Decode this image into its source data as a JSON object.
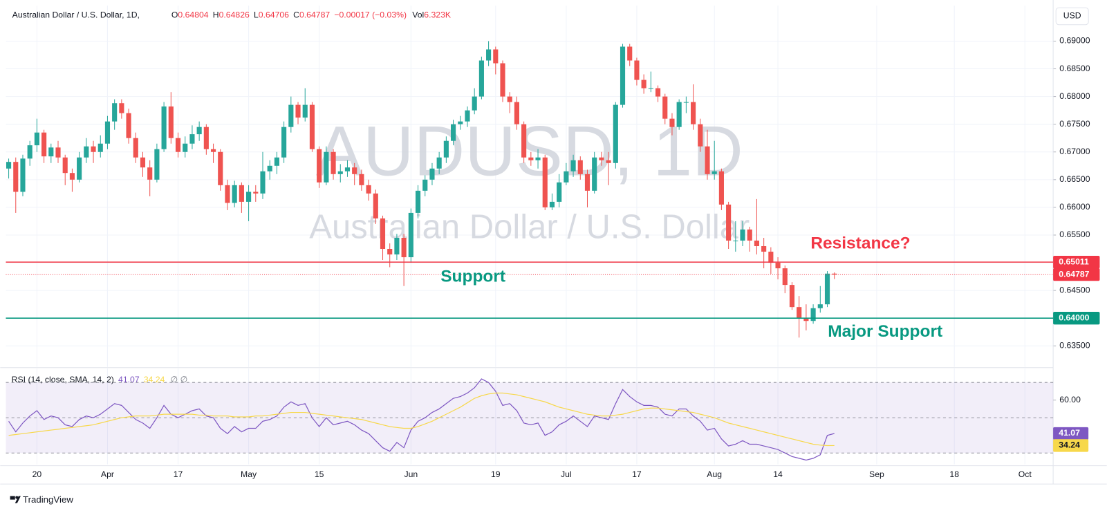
{
  "header": {
    "symbol": "Australian Dollar / U.S. Dollar, 1D,",
    "legend": [
      {
        "label": "O",
        "value": "0.64804"
      },
      {
        "label": "H",
        "value": "0.64826"
      },
      {
        "label": "L",
        "value": "0.64706"
      },
      {
        "label": "C",
        "value": "0.64787"
      }
    ],
    "change": "−0.00017 (−0.03%)",
    "vol_label": "Vol",
    "vol": "6.323K"
  },
  "currency": "USD",
  "brand": "TradingView",
  "chart_data": [
    {
      "type": "candlestick",
      "watermark": "AUDUSD, 1D",
      "watermark_subtitle": "Australian Dollar / U.S. Dollar",
      "up_color": "#26a69a",
      "down_color": "#ef5350",
      "last_price_color": "#f23645",
      "ohlc": [
        [
          0.667,
          0.6688,
          0.6652,
          0.6682
        ],
        [
          0.6682,
          0.669,
          0.659,
          0.6628
        ],
        [
          0.6628,
          0.6695,
          0.662,
          0.6688
        ],
        [
          0.6688,
          0.672,
          0.6675,
          0.6712
        ],
        [
          0.6712,
          0.676,
          0.67,
          0.6735
        ],
        [
          0.6735,
          0.674,
          0.668,
          0.6692
        ],
        [
          0.6692,
          0.6715,
          0.668,
          0.6708
        ],
        [
          0.6708,
          0.672,
          0.668,
          0.669
        ],
        [
          0.669,
          0.6695,
          0.664,
          0.6662
        ],
        [
          0.6662,
          0.667,
          0.6628,
          0.665
        ],
        [
          0.665,
          0.67,
          0.6645,
          0.669
        ],
        [
          0.669,
          0.6725,
          0.668,
          0.671
        ],
        [
          0.671,
          0.672,
          0.668,
          0.67
        ],
        [
          0.67,
          0.673,
          0.669,
          0.6715
        ],
        [
          0.6715,
          0.6765,
          0.6705,
          0.6755
        ],
        [
          0.6755,
          0.6795,
          0.674,
          0.6788
        ],
        [
          0.6788,
          0.6795,
          0.676,
          0.677
        ],
        [
          0.677,
          0.6778,
          0.6715,
          0.6725
        ],
        [
          0.6725,
          0.6735,
          0.668,
          0.669
        ],
        [
          0.669,
          0.67,
          0.6655,
          0.6672
        ],
        [
          0.6672,
          0.6685,
          0.662,
          0.665
        ],
        [
          0.665,
          0.6715,
          0.6645,
          0.6705
        ],
        [
          0.6705,
          0.679,
          0.67,
          0.6782
        ],
        [
          0.6782,
          0.6808,
          0.6715,
          0.6725
        ],
        [
          0.6725,
          0.6735,
          0.669,
          0.67
        ],
        [
          0.67,
          0.6728,
          0.669,
          0.6715
        ],
        [
          0.6715,
          0.6748,
          0.6705,
          0.6732
        ],
        [
          0.6732,
          0.6755,
          0.672,
          0.6745
        ],
        [
          0.6745,
          0.675,
          0.6695,
          0.6705
        ],
        [
          0.6705,
          0.6715,
          0.668,
          0.67
        ],
        [
          0.67,
          0.6705,
          0.663,
          0.664
        ],
        [
          0.664,
          0.665,
          0.6595,
          0.6608
        ],
        [
          0.6608,
          0.6648,
          0.66,
          0.664
        ],
        [
          0.664,
          0.6645,
          0.659,
          0.661
        ],
        [
          0.661,
          0.664,
          0.6575,
          0.6628
        ],
        [
          0.6628,
          0.664,
          0.661,
          0.6625
        ],
        [
          0.6625,
          0.67,
          0.6615,
          0.6665
        ],
        [
          0.6665,
          0.6685,
          0.665,
          0.6675
        ],
        [
          0.6675,
          0.67,
          0.666,
          0.669
        ],
        [
          0.669,
          0.6755,
          0.668,
          0.6745
        ],
        [
          0.6745,
          0.68,
          0.6735,
          0.6785
        ],
        [
          0.6785,
          0.679,
          0.675,
          0.6762
        ],
        [
          0.6762,
          0.6815,
          0.6755,
          0.6785
        ],
        [
          0.6785,
          0.679,
          0.67,
          0.6705
        ],
        [
          0.6705,
          0.671,
          0.6635,
          0.6645
        ],
        [
          0.6645,
          0.671,
          0.664,
          0.67
        ],
        [
          0.67,
          0.6705,
          0.665,
          0.666
        ],
        [
          0.666,
          0.6678,
          0.6645,
          0.6665
        ],
        [
          0.6665,
          0.6685,
          0.6655,
          0.6672
        ],
        [
          0.6672,
          0.668,
          0.664,
          0.666
        ],
        [
          0.666,
          0.6668,
          0.663,
          0.664
        ],
        [
          0.664,
          0.665,
          0.6612,
          0.6625
        ],
        [
          0.6625,
          0.6632,
          0.657,
          0.658
        ],
        [
          0.658,
          0.6585,
          0.6505,
          0.6525
        ],
        [
          0.6525,
          0.6535,
          0.6492,
          0.6515
        ],
        [
          0.6515,
          0.6552,
          0.6505,
          0.6545
        ],
        [
          0.6545,
          0.6552,
          0.6458,
          0.651
        ],
        [
          0.651,
          0.6598,
          0.65,
          0.659
        ],
        [
          0.659,
          0.664,
          0.658,
          0.663
        ],
        [
          0.663,
          0.6658,
          0.662,
          0.665
        ],
        [
          0.665,
          0.668,
          0.664,
          0.667
        ],
        [
          0.667,
          0.67,
          0.666,
          0.669
        ],
        [
          0.669,
          0.6728,
          0.668,
          0.672
        ],
        [
          0.672,
          0.6758,
          0.6712,
          0.675
        ],
        [
          0.675,
          0.6765,
          0.674,
          0.6755
        ],
        [
          0.6755,
          0.6782,
          0.6745,
          0.6775
        ],
        [
          0.6775,
          0.6815,
          0.6768,
          0.68
        ],
        [
          0.68,
          0.6872,
          0.6795,
          0.6865
        ],
        [
          0.6865,
          0.69,
          0.6855,
          0.6885
        ],
        [
          0.6885,
          0.689,
          0.684,
          0.686
        ],
        [
          0.686,
          0.6865,
          0.679,
          0.68
        ],
        [
          0.68,
          0.6808,
          0.677,
          0.679
        ],
        [
          0.679,
          0.68,
          0.674,
          0.675
        ],
        [
          0.675,
          0.6755,
          0.668,
          0.669
        ],
        [
          0.669,
          0.67,
          0.6675,
          0.6685
        ],
        [
          0.6685,
          0.6705,
          0.667,
          0.669
        ],
        [
          0.669,
          0.6695,
          0.6595,
          0.66
        ],
        [
          0.66,
          0.6625,
          0.6595,
          0.661
        ],
        [
          0.661,
          0.666,
          0.66,
          0.6645
        ],
        [
          0.6645,
          0.668,
          0.664,
          0.6665
        ],
        [
          0.6665,
          0.6695,
          0.6655,
          0.6685
        ],
        [
          0.6685,
          0.6692,
          0.665,
          0.666
        ],
        [
          0.666,
          0.6668,
          0.66,
          0.663
        ],
        [
          0.663,
          0.67,
          0.6625,
          0.669
        ],
        [
          0.669,
          0.67,
          0.6675,
          0.6685
        ],
        [
          0.6685,
          0.67,
          0.664,
          0.668
        ],
        [
          0.668,
          0.679,
          0.667,
          0.6785
        ],
        [
          0.6785,
          0.6895,
          0.678,
          0.689
        ],
        [
          0.689,
          0.6895,
          0.6855,
          0.6865
        ],
        [
          0.6865,
          0.687,
          0.682,
          0.683
        ],
        [
          0.683,
          0.684,
          0.6805,
          0.6815
        ],
        [
          0.6815,
          0.6845,
          0.6808,
          0.6815
        ],
        [
          0.6815,
          0.682,
          0.679,
          0.68
        ],
        [
          0.68,
          0.6805,
          0.675,
          0.676
        ],
        [
          0.676,
          0.677,
          0.673,
          0.6745
        ],
        [
          0.6745,
          0.6795,
          0.674,
          0.679
        ],
        [
          0.679,
          0.68,
          0.677,
          0.679
        ],
        [
          0.679,
          0.6822,
          0.674,
          0.675
        ],
        [
          0.675,
          0.676,
          0.67,
          0.671
        ],
        [
          0.671,
          0.674,
          0.665,
          0.666
        ],
        [
          0.666,
          0.672,
          0.665,
          0.6665
        ],
        [
          0.6665,
          0.667,
          0.6595,
          0.6605
        ],
        [
          0.6605,
          0.661,
          0.6525,
          0.654
        ],
        [
          0.654,
          0.6575,
          0.652,
          0.654
        ],
        [
          0.654,
          0.6575,
          0.653,
          0.656
        ],
        [
          0.656,
          0.6565,
          0.652,
          0.654
        ],
        [
          0.654,
          0.6615,
          0.6515,
          0.653
        ],
        [
          0.653,
          0.6545,
          0.649,
          0.652
        ],
        [
          0.652,
          0.6528,
          0.648,
          0.65
        ],
        [
          0.65,
          0.651,
          0.647,
          0.649
        ],
        [
          0.649,
          0.6495,
          0.6445,
          0.646
        ],
        [
          0.646,
          0.6465,
          0.6415,
          0.642
        ],
        [
          0.642,
          0.644,
          0.6365,
          0.64
        ],
        [
          0.64,
          0.6425,
          0.6378,
          0.6395
        ],
        [
          0.6395,
          0.6425,
          0.639,
          0.6418
        ],
        [
          0.6418,
          0.6458,
          0.641,
          0.6425
        ],
        [
          0.6425,
          0.6485,
          0.642,
          0.64804
        ],
        [
          0.64804,
          0.64826,
          0.64706,
          0.64787
        ]
      ],
      "xlim": [
        -0.4,
        148
      ],
      "xticks": [
        {
          "value": 4,
          "label": "20"
        },
        {
          "value": 14,
          "label": "Apr"
        },
        {
          "value": 24,
          "label": "17"
        },
        {
          "value": 34,
          "label": "May"
        },
        {
          "value": 44,
          "label": "15"
        },
        {
          "value": 57,
          "label": "Jun"
        },
        {
          "value": 69,
          "label": "19"
        },
        {
          "value": 79,
          "label": "Jul"
        },
        {
          "value": 89,
          "label": "17"
        },
        {
          "value": 100,
          "label": "Aug"
        },
        {
          "value": 109,
          "label": "14"
        },
        {
          "value": 123,
          "label": "Sep"
        },
        {
          "value": 134,
          "label": "18"
        },
        {
          "value": 144,
          "label": "Oct"
        }
      ],
      "ylim": [
        0.6312,
        0.6964
      ],
      "yticks": [
        {
          "value": 0.635,
          "label": "0.63500"
        },
        {
          "value": 0.64,
          "label": "0.64000"
        },
        {
          "value": 0.645,
          "label": "0.64500"
        },
        {
          "value": 0.65,
          "label": "0.65000"
        },
        {
          "value": 0.655,
          "label": "0.65500"
        },
        {
          "value": 0.66,
          "label": "0.66000"
        },
        {
          "value": 0.665,
          "label": "0.66500"
        },
        {
          "value": 0.67,
          "label": "0.67000"
        },
        {
          "value": 0.675,
          "label": "0.67500"
        },
        {
          "value": 0.68,
          "label": "0.68000"
        },
        {
          "value": 0.685,
          "label": "0.68500"
        },
        {
          "value": 0.69,
          "label": "0.69000"
        }
      ],
      "grid": true,
      "hlines": [
        {
          "value": 0.65011,
          "color": "#f23645"
        },
        {
          "value": 0.64,
          "label": "0.64000",
          "color": "#089981"
        }
      ],
      "annotations": [
        {
          "text": "Resistance?",
          "color": "#f23645"
        },
        {
          "text": "Support",
          "color": "#089981"
        },
        {
          "text": "Major Support",
          "color": "#089981"
        }
      ]
    },
    {
      "type": "line",
      "title": "RSI (14, close, SMA, 14, 2)",
      "legend_extra": "∅ ∅",
      "series": [
        {
          "color": "#7e57c2",
          "values": [
            48,
            42,
            47,
            51,
            54,
            49,
            51,
            50,
            46,
            45,
            49,
            51,
            50,
            52,
            55,
            58,
            57,
            53,
            49,
            47,
            44,
            50,
            57,
            52,
            50,
            52,
            54,
            55,
            51,
            50,
            44,
            41,
            45,
            42,
            44,
            44,
            48,
            49,
            51,
            56,
            59,
            57,
            58,
            50,
            45,
            50,
            46,
            47,
            48,
            46,
            43,
            41,
            37,
            33,
            31,
            36,
            33,
            43,
            48,
            50,
            53,
            55,
            58,
            61,
            62,
            64,
            67,
            72,
            70,
            65,
            57,
            58,
            54,
            47,
            46,
            47,
            40,
            42,
            46,
            48,
            51,
            48,
            45,
            51,
            50,
            49,
            58,
            66,
            62,
            59,
            57,
            57,
            56,
            52,
            51,
            55,
            55,
            51,
            48,
            43,
            44,
            38,
            34,
            35,
            37,
            35,
            35,
            34,
            33,
            32,
            30,
            28,
            27,
            26,
            27,
            29,
            40,
            41.07
          ]
        },
        {
          "color": "#f7d84b",
          "values": [
            40,
            40.5,
            41,
            41.5,
            42,
            42.5,
            43,
            43.5,
            44,
            44.5,
            45,
            45.5,
            46,
            47,
            48,
            49,
            50,
            50.5,
            51,
            51,
            51,
            51.5,
            52,
            52,
            52,
            52,
            52,
            51.5,
            51.5,
            51,
            51,
            51,
            50.5,
            50.5,
            50.5,
            51,
            51,
            51.5,
            52,
            52.5,
            53,
            53,
            53,
            52.5,
            52,
            51.5,
            51,
            50.5,
            50,
            49.5,
            49,
            48,
            47,
            46,
            45,
            44.5,
            44,
            44,
            45,
            46.5,
            48,
            50,
            52,
            54,
            56,
            58.5,
            61,
            62.5,
            63.5,
            64,
            64,
            63.5,
            63,
            62,
            61,
            60,
            59,
            57.5,
            56,
            55,
            54,
            53,
            52,
            51.5,
            51,
            51,
            51.5,
            52,
            53,
            54,
            55,
            55.5,
            55.5,
            55,
            54.5,
            54,
            53.5,
            53,
            52,
            51,
            50,
            48.5,
            47,
            46,
            45,
            44,
            43,
            42,
            41,
            40,
            39,
            38,
            37,
            36,
            35,
            34.5,
            34.2,
            34.24
          ]
        }
      ],
      "xlim": [
        -0.4,
        148
      ],
      "ylim": [
        23.6,
        78
      ],
      "yticks": [
        {
          "value": 60,
          "label": "60.00"
        }
      ],
      "levels": [
        70,
        50,
        30
      ],
      "band_color": "#7e57c2"
    }
  ]
}
